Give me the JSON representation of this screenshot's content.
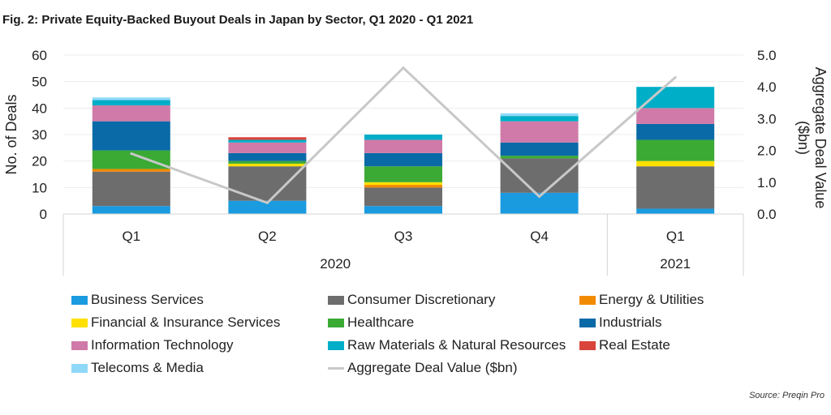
{
  "title": "Fig. 2: Private Equity-Backed Buyout Deals in Japan by Sector, Q1 2020 - Q1 2021",
  "source": "Source: Preqin Pro",
  "chart_data": {
    "type": "bar",
    "stacked": true,
    "categories": [
      "Q1",
      "Q2",
      "Q3",
      "Q4",
      "Q1"
    ],
    "year_groups": [
      {
        "label": "2020",
        "span": [
          0,
          3
        ]
      },
      {
        "label": "2021",
        "span": [
          4,
          4
        ]
      }
    ],
    "ylabel": "No. of Deals",
    "y2label": "Aggregate Deal Value ($bn)",
    "ylim": [
      0,
      60
    ],
    "yticks": [
      "0",
      "10",
      "20",
      "30",
      "40",
      "50",
      "60"
    ],
    "y2lim": [
      0,
      5
    ],
    "y2ticks": [
      "0.0",
      "1.0",
      "2.0",
      "3.0",
      "4.0",
      "5.0"
    ],
    "series": [
      {
        "name": "Business Services",
        "color": "#1a9be0",
        "values": [
          3,
          5,
          3,
          8,
          2
        ]
      },
      {
        "name": "Consumer Discretionary",
        "color": "#6d6d6d",
        "values": [
          13,
          13,
          7,
          13,
          16
        ]
      },
      {
        "name": "Energy & Utilities",
        "color": "#f28a00",
        "values": [
          1,
          0,
          1,
          0,
          0
        ]
      },
      {
        "name": "Financial & Insurance Services",
        "color": "#ffe000",
        "values": [
          0,
          1,
          1,
          0,
          2
        ]
      },
      {
        "name": "Healthcare",
        "color": "#3aaa35",
        "values": [
          7,
          1,
          6,
          1,
          8
        ]
      },
      {
        "name": "Industrials",
        "color": "#0a6aa8",
        "values": [
          11,
          3,
          5,
          5,
          6
        ]
      },
      {
        "name": "Information Technology",
        "color": "#cf7aa8",
        "values": [
          6,
          4,
          5,
          8,
          6
        ]
      },
      {
        "name": "Raw Materials & Natural Resources",
        "color": "#00aec7",
        "values": [
          2,
          1,
          2,
          2,
          8
        ]
      },
      {
        "name": "Real Estate",
        "color": "#d9443b",
        "values": [
          0,
          1,
          0,
          0,
          0
        ]
      },
      {
        "name": "Telecoms & Media",
        "color": "#8fd8f8",
        "values": [
          1,
          0,
          0,
          1,
          0
        ]
      }
    ],
    "line": {
      "name": "Aggregate Deal Value ($bn)",
      "color": "#c8c8c8",
      "axis": "right",
      "values": [
        1.9,
        0.35,
        4.6,
        0.55,
        4.3
      ]
    }
  }
}
